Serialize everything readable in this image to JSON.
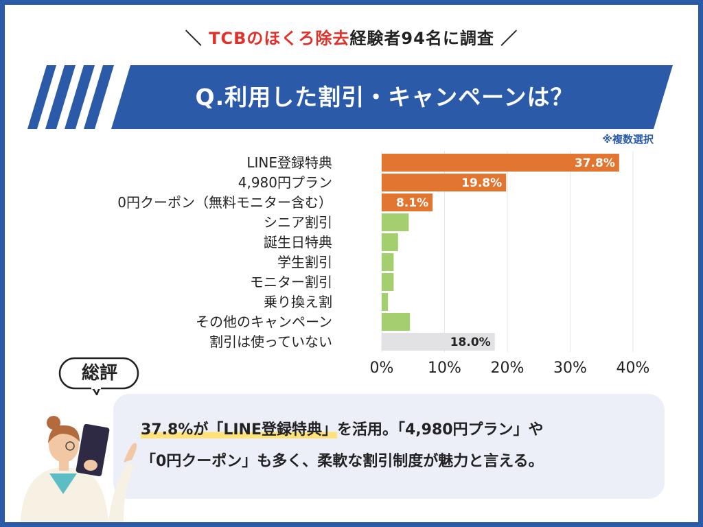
{
  "header": {
    "prefix": "＼ ",
    "highlight": "TCBのほくろ除去",
    "rest": "経験者94名に調査",
    "suffix": " ／"
  },
  "question": "Q.利用した割引・キャンペーンは？",
  "note": "※複数選択",
  "colors": {
    "accent_blue": "#2a5aa8",
    "top_bar": "#e2752f",
    "other_bar": "#a3cf6e",
    "none_bar": "#e2e2e4"
  },
  "chart_data": {
    "type": "bar",
    "orientation": "horizontal",
    "categories": [
      "LINE登録特典",
      "4,980円プラン",
      "0円クーポン（無料モニター含む）",
      "シニア割引",
      "誕生日特典",
      "学生割引",
      "モニター割引",
      "乗り換え割",
      "その他のキャンペーン",
      "割引は使っていない"
    ],
    "values": [
      37.8,
      19.8,
      8.1,
      4.3,
      2.6,
      1.9,
      1.9,
      1.0,
      4.5,
      18.0
    ],
    "value_labels": [
      "37.8%",
      "19.8%",
      "8.1%",
      "",
      "",
      "",
      "",
      "",
      "",
      "18.0%"
    ],
    "xlim": [
      0,
      40
    ],
    "xticks": [
      "0%",
      "10%",
      "20%",
      "30%",
      "40%"
    ],
    "grid": true
  },
  "review": {
    "label": "総評",
    "line1_highlight": "37.8%が「LINE登録特典」",
    "line1_rest": "を活用。「4,980円プラン」や",
    "line2": "「0円クーポン」も多く、柔軟な割引制度が魅力と言える。"
  }
}
